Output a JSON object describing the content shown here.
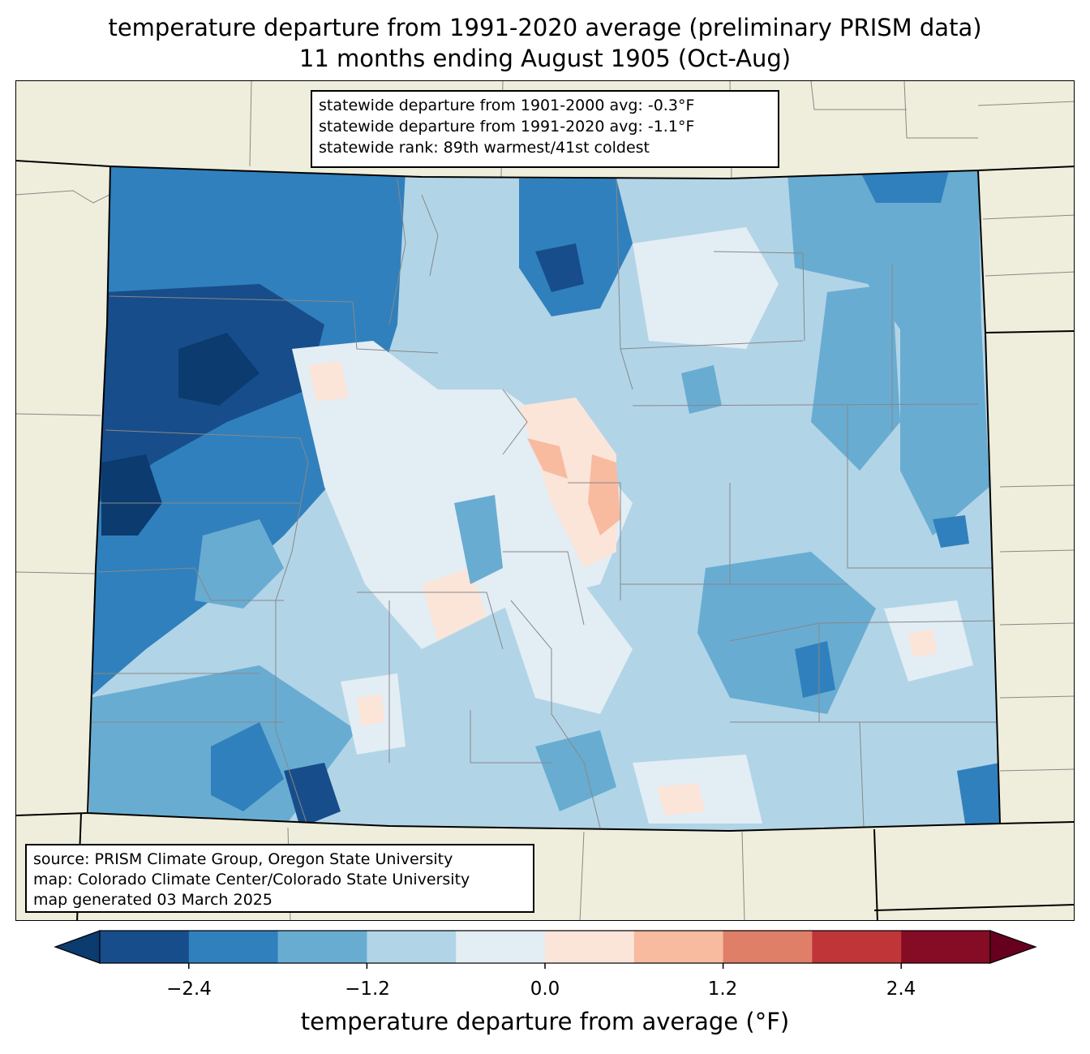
{
  "title": {
    "line1": "temperature departure from 1991-2020 average (preliminary PRISM data)",
    "line2": "11 months ending August 1905 (Oct-Aug)"
  },
  "stats": {
    "line1": "statewide departure from 1901-2000 avg: -0.3°F",
    "line2": "statewide departure from 1991-2020 avg: -1.1°F",
    "line3": "statewide rank: 89th warmest/41st coldest"
  },
  "credits": {
    "line1": "source: PRISM Climate Group, Oregon State University",
    "line2": "map: Colorado Climate Center/Colorado State University",
    "line3": "map generated 03 March 2025"
  },
  "colorbar": {
    "label": "temperature departure from average (°F)",
    "ticks": [
      "−2.4",
      "−1.2",
      "0.0",
      "1.2",
      "2.4"
    ],
    "colors": [
      "#0c3b6f",
      "#174d8a",
      "#3080bd",
      "#68acd2",
      "#b2d4e7",
      "#e3edf4",
      "#fbe5d9",
      "#f8bba0",
      "#e07f68",
      "#bf3538",
      "#860b25",
      "#67001f"
    ]
  },
  "map": {
    "land_color": "#efeedc"
  }
}
